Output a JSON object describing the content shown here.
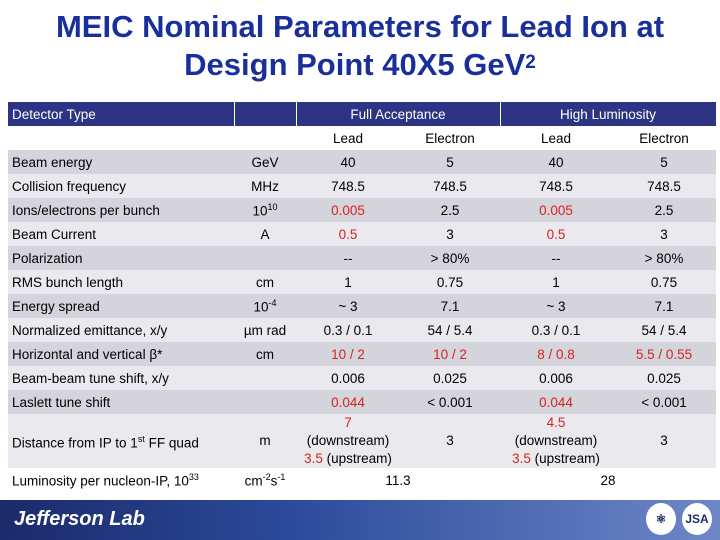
{
  "title": {
    "line1": "MEIC Nominal Parameters for Lead Ion at",
    "line2": "Design Point 40X5 GeV",
    "sup": "2"
  },
  "header": {
    "detector_type": "Detector Type",
    "full_acceptance": "Full Acceptance",
    "high_luminosity": "High Luminosity",
    "sub": [
      "Lead",
      "Electron",
      "Lead",
      "Electron"
    ]
  },
  "rows": [
    {
      "label": "Beam energy",
      "unit": "GeV",
      "v": [
        "40",
        "5",
        "40",
        "5"
      ]
    },
    {
      "label": "Collision frequency",
      "unit": "MHz",
      "v": [
        "748.5",
        "748.5",
        "748.5",
        "748.5"
      ]
    },
    {
      "label": "Ions/electrons per bunch",
      "unit": "10",
      "unit_sup": "10",
      "v": [
        "0.005",
        "2.5",
        "0.005",
        "2.5"
      ]
    },
    {
      "label": "Beam Current",
      "unit": "A",
      "v": [
        "0.5",
        "3",
        "0.5",
        "3"
      ]
    },
    {
      "label": "Polarization",
      "unit": "",
      "v": [
        "--",
        "> 80%",
        "--",
        "> 80%"
      ]
    },
    {
      "label": "RMS bunch length",
      "unit": "cm",
      "v": [
        "1",
        "0.75",
        "1",
        "0.75"
      ]
    },
    {
      "label": "Energy spread",
      "unit": "10",
      "unit_sup": "-4",
      "v": [
        "~ 3",
        "7.1",
        "~ 3",
        "7.1"
      ]
    },
    {
      "label": "Normalized emittance, x/y",
      "unit": "µm rad",
      "v": [
        "0.3 / 0.1",
        "54 / 5.4",
        "0.3 / 0.1",
        "54 / 5.4"
      ]
    },
    {
      "label": "Horizontal and vertical β*",
      "unit": "cm",
      "v": [
        "10 / 2",
        "10 / 2",
        "8 / 0.8",
        "5.5 / 0.55"
      ]
    },
    {
      "label": "Beam-beam tune shift, x/y",
      "unit": "",
      "v": [
        "0.006",
        "0.025",
        "0.006",
        "0.025"
      ]
    },
    {
      "label": "Laslett tune shift",
      "unit": "",
      "v": [
        "0.044",
        "< 0.001",
        "0.044",
        "< 0.001"
      ]
    },
    {
      "label_a": "Distance from IP to 1",
      "label_sup": "st",
      "label_b": " FF quad",
      "unit": "m",
      "v1a": "7",
      "v1b": " (downstream)",
      "v1c": "3.5",
      "v1d": " (upstream)",
      "v2": "3",
      "v3a": "4.5",
      "v3b": " (downstream)",
      "v3c": "3.5",
      "v3d": " (upstream)",
      "v4": "3"
    },
    {
      "label": "Luminosity per nucleon-IP, 10",
      "label_sup": "33",
      "unit_a": "cm",
      "unit_sup1": "-2",
      "unit_b": "s",
      "unit_sup2": "-1",
      "full": "11.3",
      "high": "28"
    }
  ],
  "footer": {
    "lab": "Jefferson Lab",
    "logo1": "⚛",
    "logo2": "JSA"
  }
}
